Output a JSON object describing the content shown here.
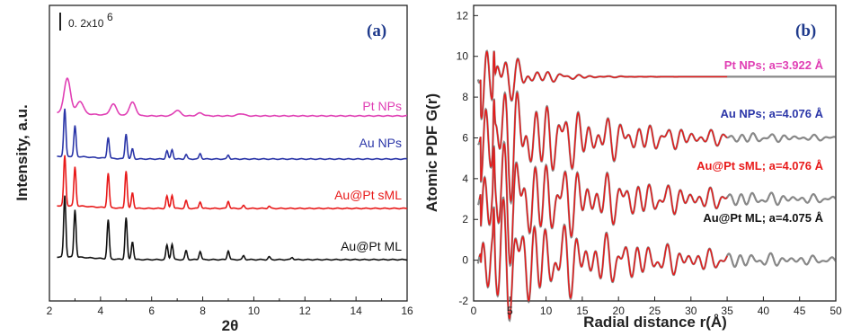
{
  "chart_data": [
    {
      "panel": "(a)",
      "type": "line",
      "xlabel": "2θ",
      "ylabel": "Intensity, a.u.",
      "xlim": [
        2,
        16
      ],
      "x_ticks": [
        2,
        4,
        6,
        8,
        10,
        12,
        14,
        16
      ],
      "scale_bar_label": "0. 2x10",
      "scale_bar_exponent": "6",
      "series": [
        {
          "name": "Pt NPs",
          "color": "#e03fb4",
          "baseline": 3,
          "peaks": [
            [
              2.7,
              0.62
            ],
            [
              3.2,
              0.22
            ],
            [
              4.5,
              0.2
            ],
            [
              5.25,
              0.24
            ],
            [
              7.0,
              0.1
            ],
            [
              7.9,
              0.05
            ],
            [
              9.5,
              0.04
            ]
          ]
        },
        {
          "name": "Au NPs",
          "color": "#2b36a8",
          "baseline": 2,
          "peaks": [
            [
              2.6,
              0.85
            ],
            [
              3.0,
              0.55
            ],
            [
              4.3,
              0.38
            ],
            [
              5.0,
              0.45
            ],
            [
              5.25,
              0.18
            ],
            [
              6.6,
              0.15
            ],
            [
              6.8,
              0.17
            ],
            [
              7.35,
              0.08
            ],
            [
              7.9,
              0.1
            ],
            [
              9.0,
              0.07
            ]
          ]
        },
        {
          "name": "Au@Pt sML",
          "color": "#e81a1a",
          "baseline": 1,
          "peaks": [
            [
              2.6,
              0.9
            ],
            [
              3.0,
              0.7
            ],
            [
              4.3,
              0.62
            ],
            [
              5.0,
              0.67
            ],
            [
              5.25,
              0.28
            ],
            [
              6.6,
              0.22
            ],
            [
              6.8,
              0.24
            ],
            [
              7.35,
              0.14
            ],
            [
              7.9,
              0.12
            ],
            [
              9.0,
              0.13
            ],
            [
              9.6,
              0.05
            ],
            [
              10.6,
              0.04
            ]
          ]
        },
        {
          "name": "Au@Pt ML",
          "color": "#111111",
          "baseline": 0,
          "peaks": [
            [
              2.6,
              1.1
            ],
            [
              3.0,
              0.85
            ],
            [
              4.3,
              0.7
            ],
            [
              5.0,
              0.75
            ],
            [
              5.25,
              0.32
            ],
            [
              6.6,
              0.26
            ],
            [
              6.8,
              0.28
            ],
            [
              7.35,
              0.16
            ],
            [
              7.9,
              0.15
            ],
            [
              9.0,
              0.16
            ],
            [
              9.6,
              0.07
            ],
            [
              10.6,
              0.05
            ],
            [
              11.5,
              0.04
            ]
          ]
        }
      ]
    },
    {
      "panel": "(b)",
      "type": "line",
      "xlabel": "Radial distance r(Å)",
      "ylabel": "Atomic PDF G(r)",
      "xlim": [
        0,
        50
      ],
      "ylim": [
        -2,
        12.5
      ],
      "x_ticks": [
        0,
        5,
        10,
        15,
        20,
        25,
        30,
        35,
        40,
        45,
        50
      ],
      "y_ticks": [
        -2,
        0,
        2,
        4,
        6,
        8,
        10,
        12
      ],
      "series": [
        {
          "name": "Pt NPs; a=3.922  Å",
          "color": "#e03fb4",
          "offset": 9,
          "fit_end": 35,
          "decay": 4,
          "amp": 3.2
        },
        {
          "name": "Au NPs; a=4.076  Å",
          "color": "#2b36a8",
          "offset": 6,
          "fit_end": 35,
          "decay": 14,
          "amp": 3.2
        },
        {
          "name": "Au@Pt sML; a=4.076 Å",
          "color": "#e81a1a",
          "offset": 3,
          "fit_end": 35,
          "decay": 16,
          "amp": 3.2
        },
        {
          "name": "Au@Pt ML; a=4.075 Å",
          "color": "#111111",
          "offset": 0,
          "fit_end": 35,
          "decay": 16,
          "amp": 3.2
        }
      ],
      "fit_color": "#e81a1a",
      "data_color": "#555555"
    }
  ]
}
